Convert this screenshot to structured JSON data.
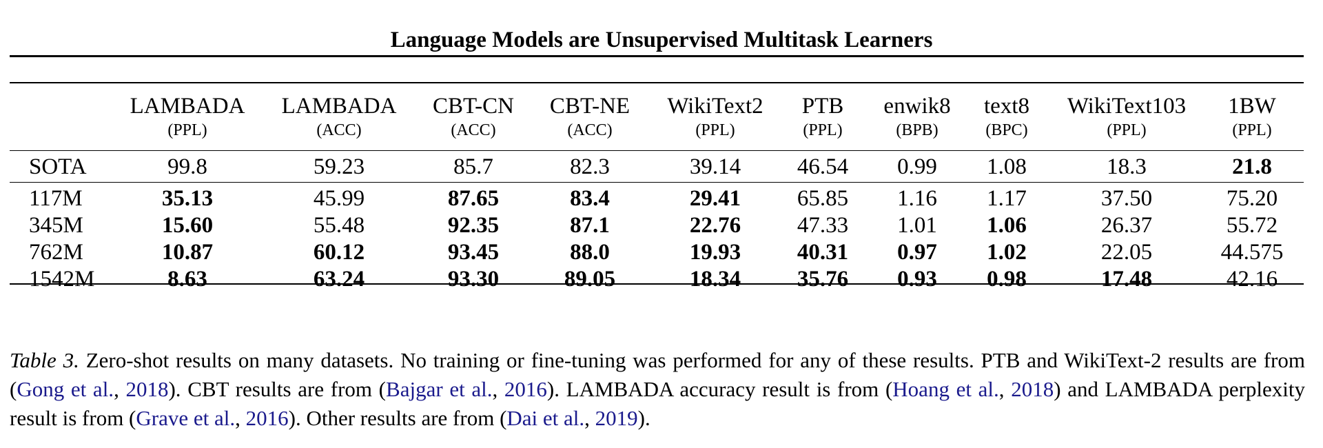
{
  "title": "Language Models are Unsupervised Multitask Learners",
  "table": {
    "columns": [
      {
        "name": "LAMBADA",
        "unit": "(PPL)"
      },
      {
        "name": "LAMBADA",
        "unit": "(ACC)"
      },
      {
        "name": "CBT-CN",
        "unit": "(ACC)"
      },
      {
        "name": "CBT-NE",
        "unit": "(ACC)"
      },
      {
        "name": "WikiText2",
        "unit": "(PPL)"
      },
      {
        "name": "PTB",
        "unit": "(PPL)"
      },
      {
        "name": "enwik8",
        "unit": "(BPB)"
      },
      {
        "name": "text8",
        "unit": "(BPC)"
      },
      {
        "name": "WikiText103",
        "unit": "(PPL)"
      },
      {
        "name": "1BW",
        "unit": "(PPL)"
      }
    ],
    "sota": {
      "label": "SOTA",
      "values": [
        "99.8",
        "59.23",
        "85.7",
        "82.3",
        "39.14",
        "46.54",
        "0.99",
        "1.08",
        "18.3",
        "21.8"
      ],
      "bold": [
        false,
        false,
        false,
        false,
        false,
        false,
        false,
        false,
        false,
        true
      ]
    },
    "models": [
      {
        "label": "117M",
        "values": [
          "35.13",
          "45.99",
          "87.65",
          "83.4",
          "29.41",
          "65.85",
          "1.16",
          "1.17",
          "37.50",
          "75.20"
        ],
        "bold": [
          true,
          false,
          true,
          true,
          true,
          false,
          false,
          false,
          false,
          false
        ]
      },
      {
        "label": "345M",
        "values": [
          "15.60",
          "55.48",
          "92.35",
          "87.1",
          "22.76",
          "47.33",
          "1.01",
          "1.06",
          "26.37",
          "55.72"
        ],
        "bold": [
          true,
          false,
          true,
          true,
          true,
          false,
          false,
          true,
          false,
          false
        ]
      },
      {
        "label": "762M",
        "values": [
          "10.87",
          "60.12",
          "93.45",
          "88.0",
          "19.93",
          "40.31",
          "0.97",
          "1.02",
          "22.05",
          "44.575"
        ],
        "bold": [
          true,
          true,
          true,
          true,
          true,
          true,
          true,
          true,
          false,
          false
        ]
      },
      {
        "label": "1542M",
        "values": [
          "8.63",
          "63.24",
          "93.30",
          "89.05",
          "18.34",
          "35.76",
          "0.93",
          "0.98",
          "17.48",
          "42.16"
        ],
        "bold": [
          true,
          true,
          true,
          true,
          true,
          true,
          true,
          true,
          true,
          false
        ]
      }
    ]
  },
  "caption": {
    "label": "Table 3.",
    "s1": " Zero-shot results on many datasets. No training or fine-tuning was performed for any of these results. PTB and WikiText-2 results are from (",
    "c1_author": "Gong et al.",
    "c1_year": "2018",
    "s2": "). CBT results are from (",
    "c2_author": "Bajgar et al.",
    "c2_year": "2016",
    "s3": "). LAMBADA accuracy result is from (",
    "c3_author": "Hoang et al.",
    "c3_year": "2018",
    "s4": ") and LAMBADA perplexity result is from (",
    "c4_author": "Grave et al.",
    "c4_year": "2016",
    "s5": "). Other results are from (",
    "c5_author": "Dai et al.",
    "c5_year": "2019",
    "s6": ")."
  }
}
